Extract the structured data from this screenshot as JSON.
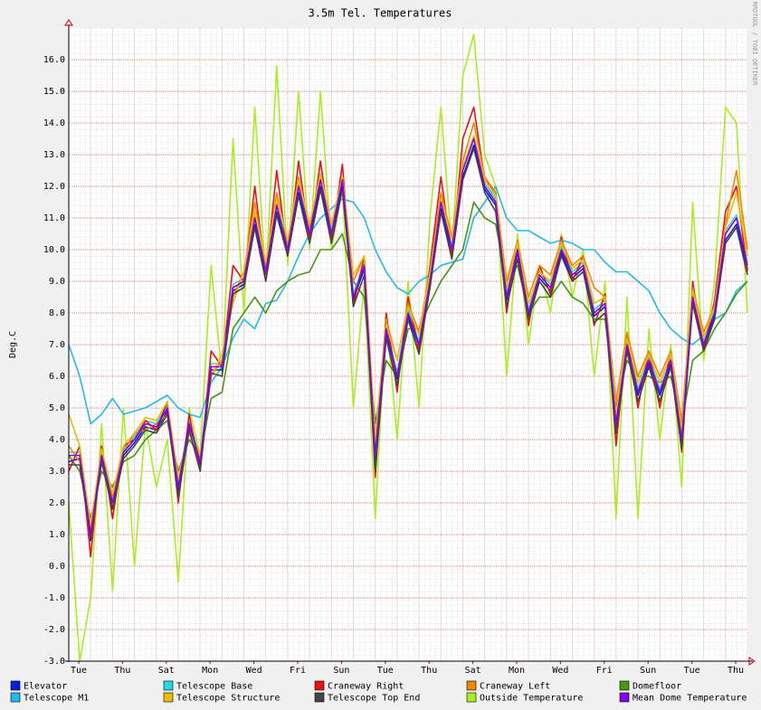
{
  "chart_data": {
    "type": "line",
    "title": "3.5m Tel. Temperatures",
    "y_label": "Deg.C",
    "watermark": "RRDTOOL / TOBI OETIKER",
    "x_labels": [
      "Tue",
      "Thu",
      "Sat",
      "Mon",
      "Wed",
      "Fri",
      "Sun",
      "Tue",
      "Thu",
      "Sat",
      "Mon",
      "Wed",
      "Fri",
      "Sun",
      "Tue",
      "Thu"
    ],
    "ylim": [
      -3,
      17
    ],
    "yticks": [
      {
        "value": -3,
        "label": "-3.0"
      },
      {
        "value": -2,
        "label": "-2.0"
      },
      {
        "value": -1,
        "label": "-1.0"
      },
      {
        "value": 0,
        "label": "0.0"
      },
      {
        "value": 1,
        "label": "1.0"
      },
      {
        "value": 2,
        "label": "2.0"
      },
      {
        "value": 3,
        "label": "3.0"
      },
      {
        "value": 4,
        "label": "4.0"
      },
      {
        "value": 5,
        "label": "5.0"
      },
      {
        "value": 6,
        "label": "6.0"
      },
      {
        "value": 7,
        "label": "7.0"
      },
      {
        "value": 8,
        "label": "8.0"
      },
      {
        "value": 9,
        "label": "9.0"
      },
      {
        "value": 10,
        "label": "10.0"
      },
      {
        "value": 11,
        "label": "11.0"
      },
      {
        "value": 12,
        "label": "12.0"
      },
      {
        "value": 13,
        "label": "13.0"
      },
      {
        "value": 14,
        "label": "14.0"
      },
      {
        "value": 15,
        "label": "15.0"
      },
      {
        "value": 16,
        "label": "16.0"
      }
    ],
    "grid": true,
    "series": [
      {
        "name": "Elevator",
        "color": "#0022dd",
        "values": [
          3.3,
          3.4,
          0.8,
          3.4,
          1.8,
          3.5,
          3.9,
          4.4,
          4.3,
          4.9,
          2.4,
          4.4,
          3.2,
          6.2,
          6.2,
          8.7,
          8.9,
          10.8,
          9.2,
          11.2,
          9.9,
          11.8,
          10.4,
          12.0,
          10.4,
          12.0,
          8.4,
          9.4,
          3.3,
          7.4,
          5.9,
          7.9,
          6.9,
          8.9,
          11.3,
          9.9,
          12.3,
          13.3,
          11.9,
          11.4,
          8.4,
          9.9,
          7.9,
          9.1,
          8.7,
          9.9,
          9.1,
          9.4,
          7.9,
          8.2,
          4.4,
          6.9,
          5.4,
          6.4,
          5.4,
          6.4,
          3.9,
          8.4,
          6.9,
          7.9,
          10.3,
          10.8,
          9.4
        ]
      },
      {
        "name": "Telescope Base",
        "color": "#22dddd",
        "values": [
          3.6,
          3.6,
          1.1,
          3.6,
          2.1,
          3.7,
          4.1,
          4.6,
          4.5,
          5.1,
          2.6,
          4.6,
          3.4,
          6.4,
          6.4,
          8.9,
          9.1,
          11.1,
          9.4,
          11.5,
          10.1,
          12.1,
          10.6,
          12.3,
          10.6,
          12.3,
          8.6,
          9.6,
          3.6,
          7.6,
          6.1,
          8.1,
          7.1,
          9.1,
          11.6,
          10.1,
          12.6,
          13.6,
          12.1,
          11.6,
          8.6,
          10.1,
          8.1,
          9.3,
          8.9,
          10.1,
          9.3,
          9.6,
          8.1,
          8.4,
          4.6,
          7.1,
          5.6,
          6.6,
          5.6,
          6.6,
          4.1,
          8.6,
          7.1,
          8.1,
          10.6,
          11.1,
          9.6
        ]
      },
      {
        "name": "Craneway Right",
        "color": "#ee1111",
        "values": [
          3.0,
          3.8,
          0.3,
          3.8,
          1.5,
          3.8,
          4.0,
          4.6,
          4.3,
          5.2,
          2.0,
          4.8,
          3.0,
          6.8,
          6.3,
          9.5,
          9.0,
          12.0,
          9.2,
          12.5,
          9.8,
          12.8,
          10.3,
          12.8,
          10.3,
          12.7,
          8.2,
          9.8,
          2.8,
          8.0,
          5.5,
          8.5,
          6.8,
          9.5,
          12.3,
          9.8,
          13.5,
          14.5,
          12.2,
          11.8,
          8.0,
          10.3,
          7.6,
          9.5,
          8.6,
          10.4,
          9.0,
          9.8,
          7.6,
          8.6,
          3.8,
          7.3,
          5.0,
          6.8,
          5.0,
          6.8,
          3.6,
          9.0,
          6.8,
          8.4,
          11.2,
          12.0,
          9.3
        ]
      },
      {
        "name": "Craneway Left",
        "color": "#ee8800",
        "values": [
          3.8,
          3.3,
          1.2,
          3.3,
          2.2,
          3.6,
          4.2,
          4.3,
          4.5,
          4.8,
          2.8,
          4.3,
          3.5,
          6.0,
          6.5,
          8.5,
          9.3,
          11.5,
          9.5,
          11.8,
          10.2,
          12.3,
          10.7,
          12.4,
          10.8,
          12.3,
          9.0,
          9.8,
          4.0,
          7.8,
          6.5,
          8.3,
          7.4,
          9.3,
          11.8,
          10.4,
          12.8,
          14.0,
          12.3,
          11.8,
          9.0,
          10.3,
          8.5,
          9.5,
          9.2,
          10.3,
          9.5,
          9.8,
          8.8,
          8.5,
          5.2,
          7.4,
          6.0,
          6.8,
          6.0,
          6.8,
          4.6,
          8.8,
          7.4,
          8.2,
          10.8,
          12.5,
          10.0
        ]
      },
      {
        "name": "Domefloor",
        "color": "#449911",
        "values": [
          3.5,
          3.0,
          1.5,
          3.0,
          2.5,
          3.3,
          3.5,
          4.0,
          4.3,
          4.6,
          3.0,
          4.0,
          3.5,
          5.3,
          5.5,
          7.5,
          8.0,
          8.5,
          8.0,
          8.7,
          9.0,
          9.2,
          9.3,
          10.0,
          10.0,
          10.5,
          9.0,
          8.5,
          4.5,
          6.5,
          6.0,
          7.5,
          7.5,
          8.3,
          9.0,
          9.5,
          10.0,
          11.5,
          11.0,
          10.8,
          9.0,
          9.5,
          8.0,
          8.5,
          8.5,
          9.0,
          8.5,
          8.3,
          7.8,
          7.8,
          5.0,
          6.5,
          6.0,
          6.0,
          5.8,
          6.0,
          4.5,
          6.5,
          6.8,
          7.5,
          8.0,
          8.6,
          9.0
        ]
      },
      {
        "name": "Telescope M1",
        "color": "#22bbee",
        "values": [
          7.0,
          6.0,
          4.5,
          4.8,
          5.3,
          4.8,
          4.9,
          5.0,
          5.2,
          5.4,
          5.0,
          4.8,
          4.7,
          5.8,
          6.3,
          7.2,
          7.8,
          7.5,
          8.3,
          8.4,
          9.0,
          9.8,
          10.5,
          11.0,
          11.3,
          11.6,
          11.5,
          11.0,
          10.0,
          9.3,
          8.8,
          8.6,
          9.0,
          9.2,
          9.5,
          9.6,
          9.7,
          11.0,
          11.5,
          12.0,
          11.0,
          10.6,
          10.6,
          10.4,
          10.2,
          10.3,
          10.2,
          10.0,
          10.0,
          9.6,
          9.3,
          9.3,
          9.0,
          8.7,
          8.0,
          7.5,
          7.2,
          7.0,
          7.3,
          7.8,
          8.0,
          8.7,
          9.0
        ]
      },
      {
        "name": "Telescope Structure",
        "color": "#eebb00",
        "values": [
          4.8,
          3.8,
          1.3,
          3.7,
          2.3,
          3.8,
          4.2,
          4.7,
          4.6,
          5.2,
          2.8,
          4.2,
          3.5,
          6.0,
          6.7,
          8.3,
          9.3,
          11.2,
          9.6,
          11.6,
          10.3,
          12.2,
          10.8,
          12.4,
          10.8,
          12.3,
          9.2,
          9.8,
          4.0,
          7.6,
          6.5,
          8.2,
          7.3,
          9.2,
          11.6,
          10.3,
          12.6,
          13.6,
          12.2,
          11.7,
          8.8,
          10.2,
          8.3,
          9.3,
          9.0,
          10.2,
          9.4,
          9.7,
          8.3,
          8.5,
          4.8,
          7.2,
          5.8,
          6.7,
          5.8,
          6.7,
          4.3,
          8.7,
          7.2,
          8.2,
          10.7,
          11.8,
          9.8
        ]
      },
      {
        "name": "Telescope Top End",
        "color": "#444444",
        "values": [
          3.2,
          3.2,
          0.9,
          3.3,
          1.8,
          3.4,
          3.8,
          4.3,
          4.2,
          4.8,
          2.2,
          4.3,
          3.0,
          6.1,
          6.0,
          8.6,
          8.8,
          10.7,
          9.0,
          11.1,
          9.8,
          11.7,
          10.2,
          11.9,
          10.2,
          11.9,
          8.2,
          9.2,
          3.0,
          7.2,
          5.7,
          7.8,
          6.7,
          8.8,
          11.2,
          9.7,
          12.2,
          13.2,
          11.8,
          11.2,
          8.2,
          9.7,
          7.8,
          9.0,
          8.5,
          9.8,
          9.0,
          9.3,
          7.7,
          8.0,
          4.2,
          6.8,
          5.2,
          6.3,
          5.2,
          6.3,
          3.7,
          8.3,
          6.8,
          7.8,
          10.2,
          10.7,
          9.2
        ]
      },
      {
        "name": "Outside Temperature",
        "color": "#aaee22",
        "values": [
          2.0,
          -3.0,
          -1.0,
          4.5,
          -0.8,
          5.0,
          0.0,
          4.5,
          2.5,
          4.0,
          -0.5,
          5.0,
          3.5,
          9.5,
          6.0,
          13.5,
          8.0,
          14.5,
          9.0,
          15.8,
          9.5,
          15.0,
          10.0,
          15.0,
          10.0,
          12.0,
          5.0,
          9.0,
          1.5,
          8.0,
          4.0,
          9.0,
          5.0,
          11.0,
          14.5,
          10.0,
          15.5,
          16.8,
          13.0,
          12.0,
          6.0,
          10.5,
          7.0,
          9.5,
          8.0,
          10.5,
          8.5,
          10.0,
          6.0,
          9.0,
          1.5,
          8.5,
          1.5,
          7.5,
          4.0,
          7.0,
          2.5,
          11.5,
          6.5,
          9.0,
          14.5,
          14.0,
          8.0
        ]
      },
      {
        "name": "Mean Dome Temperature",
        "color": "#8800ee",
        "values": [
          3.5,
          3.5,
          1.0,
          3.5,
          2.0,
          3.6,
          4.0,
          4.5,
          4.4,
          5.0,
          2.5,
          4.5,
          3.3,
          6.3,
          6.3,
          8.8,
          9.0,
          11.0,
          9.3,
          11.4,
          10.0,
          12.0,
          10.5,
          12.2,
          10.5,
          12.2,
          8.5,
          9.5,
          3.5,
          7.5,
          6.0,
          8.0,
          7.0,
          9.0,
          11.5,
          10.0,
          12.5,
          13.5,
          12.0,
          11.5,
          8.5,
          10.0,
          8.0,
          9.2,
          8.8,
          10.0,
          9.2,
          9.5,
          8.0,
          8.3,
          4.5,
          7.0,
          5.5,
          6.5,
          5.5,
          6.5,
          4.0,
          8.5,
          7.0,
          8.0,
          10.5,
          11.0,
          9.5
        ]
      }
    ]
  }
}
